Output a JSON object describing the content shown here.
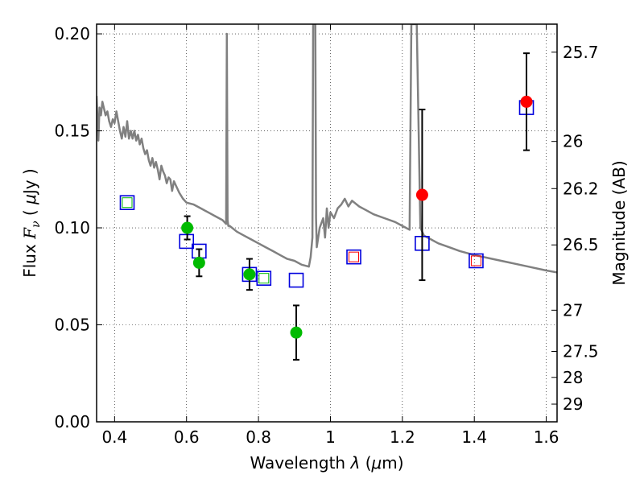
{
  "chart_data": {
    "type": "scatter",
    "xlabel_text": "Wavelength",
    "xlabel_symbol": "λ",
    "xlabel_unit_pre": "(",
    "xlabel_unit_mu": "μ",
    "xlabel_unit_post": "m)",
    "ylabel_text": "Flux",
    "ylabel_symbol": "F",
    "ylabel_sub": "ν",
    "ylabel_unit_pre": "(",
    "ylabel_unit_mu": "μ",
    "ylabel_unit_post": "Jy )",
    "y2label": "Magnitude (AB)",
    "xlim": [
      0.35,
      1.63
    ],
    "ylim": [
      0.0,
      0.205
    ],
    "grid": true,
    "grid_style": "dotted",
    "x_ticks": [
      {
        "v": 0.4,
        "label": "0.4"
      },
      {
        "v": 0.6,
        "label": "0.6"
      },
      {
        "v": 0.8,
        "label": "0.8"
      },
      {
        "v": 1.0,
        "label": "1"
      },
      {
        "v": 1.2,
        "label": "1.2"
      },
      {
        "v": 1.4,
        "label": "1.4"
      },
      {
        "v": 1.6,
        "label": "1.6"
      }
    ],
    "y_ticks": [
      {
        "v": 0.0,
        "label": "0.00"
      },
      {
        "v": 0.05,
        "label": "0.05"
      },
      {
        "v": 0.1,
        "label": "0.10"
      },
      {
        "v": 0.15,
        "label": "0.15"
      },
      {
        "v": 0.2,
        "label": "0.20"
      }
    ],
    "y2_ticks": [
      {
        "mag": 25.7,
        "label": "25.7"
      },
      {
        "mag": 26,
        "label": "26"
      },
      {
        "mag": 26.2,
        "label": "26.2"
      },
      {
        "mag": 26.5,
        "label": "26.5"
      },
      {
        "mag": 27,
        "label": "27"
      },
      {
        "mag": 27.5,
        "label": "27.5"
      },
      {
        "mag": 28,
        "label": "28"
      },
      {
        "mag": 29,
        "label": "29"
      }
    ],
    "model_spectrum": {
      "color": "#808080",
      "x": [
        0.35,
        0.352,
        0.355,
        0.358,
        0.362,
        0.366,
        0.37,
        0.375,
        0.38,
        0.385,
        0.39,
        0.395,
        0.4,
        0.405,
        0.41,
        0.415,
        0.42,
        0.425,
        0.43,
        0.435,
        0.44,
        0.445,
        0.45,
        0.455,
        0.46,
        0.465,
        0.47,
        0.475,
        0.48,
        0.485,
        0.49,
        0.495,
        0.5,
        0.505,
        0.51,
        0.515,
        0.52,
        0.525,
        0.53,
        0.535,
        0.54,
        0.545,
        0.55,
        0.555,
        0.56,
        0.565,
        0.57,
        0.58,
        0.59,
        0.6,
        0.62,
        0.64,
        0.66,
        0.68,
        0.7,
        0.71,
        0.712,
        0.714,
        0.716,
        0.72,
        0.74,
        0.76,
        0.78,
        0.8,
        0.82,
        0.84,
        0.86,
        0.88,
        0.9,
        0.92,
        0.94,
        0.945,
        0.95,
        0.952,
        0.955,
        0.958,
        0.96,
        0.962,
        0.97,
        0.98,
        0.985,
        0.99,
        0.995,
        1.0,
        1.01,
        1.02,
        1.03,
        1.04,
        1.05,
        1.06,
        1.08,
        1.1,
        1.12,
        1.15,
        1.18,
        1.2,
        1.21,
        1.22,
        1.225,
        1.228,
        1.232,
        1.24,
        1.25,
        1.26,
        1.28,
        1.3,
        1.33,
        1.36,
        1.4,
        1.45,
        1.5,
        1.55,
        1.6,
        1.63
      ],
      "y": [
        0.168,
        0.158,
        0.145,
        0.162,
        0.158,
        0.165,
        0.162,
        0.158,
        0.16,
        0.155,
        0.152,
        0.156,
        0.154,
        0.16,
        0.155,
        0.15,
        0.146,
        0.152,
        0.147,
        0.155,
        0.146,
        0.15,
        0.146,
        0.15,
        0.145,
        0.148,
        0.143,
        0.146,
        0.141,
        0.138,
        0.14,
        0.135,
        0.132,
        0.136,
        0.131,
        0.134,
        0.13,
        0.125,
        0.132,
        0.129,
        0.127,
        0.123,
        0.126,
        0.125,
        0.119,
        0.124,
        0.122,
        0.118,
        0.115,
        0.113,
        0.112,
        0.11,
        0.108,
        0.106,
        0.104,
        0.102,
        0.2,
        0.104,
        0.101,
        0.101,
        0.098,
        0.096,
        0.094,
        0.092,
        0.09,
        0.088,
        0.086,
        0.084,
        0.083,
        0.081,
        0.08,
        0.085,
        0.095,
        0.205,
        0.205,
        0.205,
        0.105,
        0.09,
        0.1,
        0.105,
        0.095,
        0.11,
        0.1,
        0.108,
        0.105,
        0.11,
        0.112,
        0.115,
        0.111,
        0.114,
        0.111,
        0.109,
        0.107,
        0.105,
        0.103,
        0.101,
        0.1,
        0.099,
        0.205,
        0.205,
        0.205,
        0.205,
        0.1,
        0.096,
        0.094,
        0.092,
        0.09,
        0.088,
        0.086,
        0.084,
        0.082,
        0.08,
        0.078,
        0.077
      ]
    },
    "series": [
      {
        "name": "green",
        "marker": "circle",
        "color": "#00bb00",
        "points": [
          {
            "x": 0.602,
            "y": 0.1,
            "err": 0.006
          },
          {
            "x": 0.635,
            "y": 0.082,
            "err": 0.007
          },
          {
            "x": 0.775,
            "y": 0.076,
            "err": 0.008
          },
          {
            "x": 0.905,
            "y": 0.046,
            "err": 0.014
          }
        ]
      },
      {
        "name": "red",
        "marker": "circle",
        "color": "#ff0000",
        "points": [
          {
            "x": 1.255,
            "y": 0.117,
            "err": 0.044
          },
          {
            "x": 1.545,
            "y": 0.165,
            "err": 0.025
          }
        ]
      },
      {
        "name": "blue-squares",
        "marker": "square-open",
        "color": "#0000dd",
        "points": [
          {
            "x": 0.435,
            "y": 0.113
          },
          {
            "x": 0.6,
            "y": 0.093
          },
          {
            "x": 0.635,
            "y": 0.088
          },
          {
            "x": 0.775,
            "y": 0.076
          },
          {
            "x": 0.815,
            "y": 0.074
          },
          {
            "x": 0.905,
            "y": 0.073
          },
          {
            "x": 1.065,
            "y": 0.085
          },
          {
            "x": 1.255,
            "y": 0.092
          },
          {
            "x": 1.405,
            "y": 0.083
          },
          {
            "x": 1.545,
            "y": 0.162
          }
        ]
      },
      {
        "name": "inner-squares",
        "marker": "square-open-small",
        "points": [
          {
            "x": 0.435,
            "y": 0.113,
            "color": "#00bb00"
          },
          {
            "x": 0.815,
            "y": 0.074,
            "color": "#00bb00"
          },
          {
            "x": 1.065,
            "y": 0.085,
            "color": "#ff0000"
          },
          {
            "x": 1.405,
            "y": 0.083,
            "color": "#ff0000"
          }
        ]
      }
    ]
  }
}
